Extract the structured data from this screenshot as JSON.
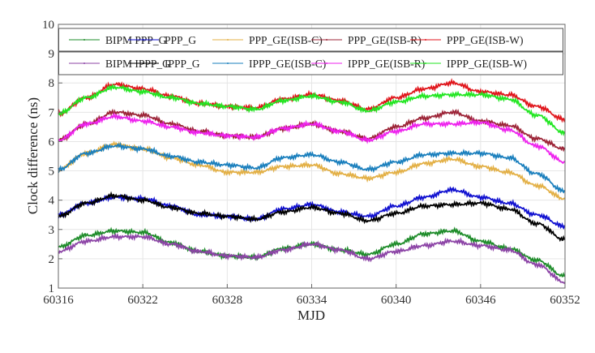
{
  "chart_data": {
    "type": "line",
    "title": "",
    "xlabel": "MJD",
    "ylabel": "Clock difference (ns)",
    "xlim": [
      60316,
      60352
    ],
    "ylim": [
      1,
      10
    ],
    "xticks": [
      60316,
      60322,
      60328,
      60334,
      60340,
      60346,
      60352
    ],
    "yticks": [
      1,
      2,
      3,
      4,
      5,
      6,
      7,
      8,
      9,
      10
    ],
    "grid": true,
    "legend_placement": "top",
    "x": [
      60316,
      60318,
      60320,
      60322,
      60324,
      60326,
      60328,
      60330,
      60332,
      60334,
      60336,
      60338,
      60340,
      60342,
      60344,
      60346,
      60348,
      60350,
      60352
    ],
    "series": [
      {
        "name": "BIPM PPP_G",
        "color": "#1e8c2a",
        "values": [
          2.4,
          2.8,
          2.95,
          2.9,
          2.55,
          2.25,
          2.1,
          2.05,
          2.35,
          2.5,
          2.3,
          2.15,
          2.5,
          2.85,
          2.95,
          2.6,
          2.35,
          1.95,
          1.4
        ]
      },
      {
        "name": "PPP_G",
        "color": "#1010d0",
        "values": [
          3.5,
          3.9,
          4.1,
          4.05,
          3.8,
          3.5,
          3.45,
          3.35,
          3.7,
          3.85,
          3.6,
          3.45,
          3.8,
          4.1,
          4.35,
          4.1,
          3.9,
          3.5,
          3.1
        ]
      },
      {
        "name": "PPP_GE(ISB-C)",
        "color": "#e3b046",
        "values": [
          5.05,
          5.6,
          5.9,
          5.75,
          5.45,
          5.2,
          4.95,
          4.95,
          5.15,
          5.2,
          4.9,
          4.75,
          4.95,
          5.25,
          5.4,
          5.15,
          4.95,
          4.5,
          4.05
        ]
      },
      {
        "name": "PPP_GE(ISB-R)",
        "color": "#9c2437",
        "values": [
          6.05,
          6.6,
          7.0,
          6.9,
          6.6,
          6.35,
          6.2,
          6.15,
          6.45,
          6.6,
          6.35,
          6.1,
          6.5,
          6.8,
          7.0,
          6.7,
          6.55,
          6.1,
          5.75
        ]
      },
      {
        "name": "PPP_GE(ISB-W)",
        "color": "#e0161c",
        "values": [
          6.95,
          7.5,
          7.95,
          7.8,
          7.55,
          7.3,
          7.2,
          7.15,
          7.45,
          7.6,
          7.4,
          7.1,
          7.5,
          7.8,
          8.0,
          7.7,
          7.6,
          7.2,
          6.75
        ]
      },
      {
        "name": "BIPM IPPP_G",
        "color": "#8c44a6",
        "values": [
          2.25,
          2.6,
          2.75,
          2.75,
          2.5,
          2.25,
          2.1,
          2.05,
          2.3,
          2.5,
          2.3,
          2.0,
          2.25,
          2.45,
          2.6,
          2.45,
          2.3,
          1.8,
          1.2
        ]
      },
      {
        "name": "IPPP_G",
        "color": "#000000",
        "values": [
          3.45,
          3.9,
          4.15,
          4.0,
          3.75,
          3.55,
          3.45,
          3.35,
          3.6,
          3.75,
          3.55,
          3.3,
          3.55,
          3.8,
          3.85,
          3.9,
          3.7,
          3.2,
          2.65
        ]
      },
      {
        "name": "IPPP_GE(ISB-C)",
        "color": "#1a7fbd",
        "values": [
          5.05,
          5.6,
          5.85,
          5.75,
          5.5,
          5.3,
          5.2,
          5.1,
          5.45,
          5.55,
          5.3,
          5.05,
          5.3,
          5.55,
          5.6,
          5.6,
          5.45,
          4.9,
          4.3
        ]
      },
      {
        "name": "IPPP_GE(ISB-R)",
        "color": "#ee22ee",
        "values": [
          6.05,
          6.6,
          6.85,
          6.7,
          6.5,
          6.3,
          6.2,
          6.15,
          6.45,
          6.6,
          6.35,
          6.05,
          6.35,
          6.6,
          6.6,
          6.65,
          6.4,
          5.85,
          5.3
        ]
      },
      {
        "name": "IPPP_GE(ISB-W)",
        "color": "#22e622",
        "values": [
          6.95,
          7.5,
          7.85,
          7.7,
          7.5,
          7.3,
          7.2,
          7.1,
          7.4,
          7.55,
          7.35,
          7.05,
          7.35,
          7.55,
          7.6,
          7.6,
          7.45,
          6.9,
          6.3
        ]
      }
    ]
  }
}
